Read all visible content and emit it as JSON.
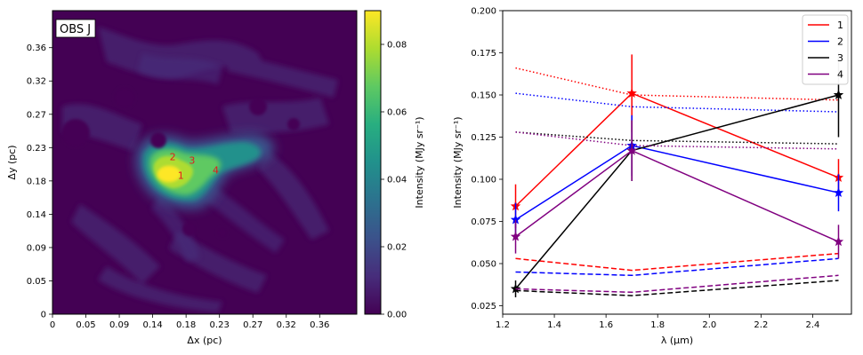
{
  "chart_data": [
    {
      "type": "heatmap",
      "title_box": "OBS J",
      "xlabel": "Δx (pc)",
      "ylabel": "Δy (pc)",
      "x_ticks": [
        "0",
        "0.05",
        "0.09",
        "0.14",
        "0.18",
        "0.23",
        "0.27",
        "0.32",
        "0.36"
      ],
      "y_ticks": [
        "0",
        "0.05",
        "0.09",
        "0.14",
        "0.18",
        "0.23",
        "0.27",
        "0.32",
        "0.36"
      ],
      "xlim": [
        0,
        0.41
      ],
      "ylim": [
        0,
        0.41
      ],
      "colormap": "viridis",
      "colorbar": {
        "label": "Intensity (MJy sr⁻¹)",
        "range": [
          0,
          0.09
        ],
        "ticks": [
          "0.00",
          "0.02",
          "0.04",
          "0.06",
          "0.08"
        ],
        "tick_values": [
          0,
          0.02,
          0.04,
          0.06,
          0.08
        ]
      },
      "markers": [
        {
          "label": "1",
          "x": 0.173,
          "y": 0.183
        },
        {
          "label": "2",
          "x": 0.162,
          "y": 0.208
        },
        {
          "label": "3",
          "x": 0.188,
          "y": 0.203
        },
        {
          "label": "4",
          "x": 0.22,
          "y": 0.19
        }
      ],
      "marker_color": "#e41a1c"
    },
    {
      "type": "line",
      "xlabel": "λ (μm)",
      "ylabel": "Intensity (MJy sr⁻¹)",
      "xlim": [
        1.2,
        2.55
      ],
      "ylim": [
        0.02,
        0.2
      ],
      "x_ticks": [
        "1.2",
        "1.4",
        "1.6",
        "1.8",
        "2.0",
        "2.2",
        "2.4"
      ],
      "x_tick_values": [
        1.2,
        1.4,
        1.6,
        1.8,
        2.0,
        2.2,
        2.4
      ],
      "y_ticks": [
        "0.025",
        "0.050",
        "0.075",
        "0.100",
        "0.125",
        "0.150",
        "0.175",
        "0.200"
      ],
      "y_tick_values": [
        0.025,
        0.05,
        0.075,
        0.1,
        0.125,
        0.15,
        0.175,
        0.2
      ],
      "legend_position": "top-right",
      "x": [
        1.25,
        1.7,
        2.5
      ],
      "series": [
        {
          "name": "1",
          "color": "#ff0000",
          "values": [
            0.084,
            0.151,
            0.101
          ],
          "errors": [
            0.013,
            0.023,
            0.011
          ],
          "dotted": [
            0.166,
            0.15,
            0.147
          ],
          "dashed": [
            0.053,
            0.046,
            0.056
          ]
        },
        {
          "name": "2",
          "color": "#0000ff",
          "values": [
            0.076,
            0.12,
            0.092
          ],
          "errors": [
            0.01,
            0.018,
            0.011
          ],
          "dotted": [
            0.151,
            0.143,
            0.14
          ],
          "dashed": [
            0.045,
            0.043,
            0.053
          ]
        },
        {
          "name": "3",
          "color": "#000000",
          "values": [
            0.035,
            0.117,
            0.15
          ],
          "errors": [
            0.005,
            0.018,
            0.025
          ],
          "dotted": [
            0.128,
            0.123,
            0.121
          ],
          "dashed": [
            0.034,
            0.031,
            0.04
          ]
        },
        {
          "name": "4",
          "color": "#800080",
          "values": [
            0.066,
            0.117,
            0.063
          ],
          "errors": [
            0.01,
            0.018,
            0.01
          ],
          "dotted": [
            0.128,
            0.12,
            0.118
          ],
          "dashed": [
            0.035,
            0.033,
            0.043
          ]
        }
      ]
    }
  ]
}
